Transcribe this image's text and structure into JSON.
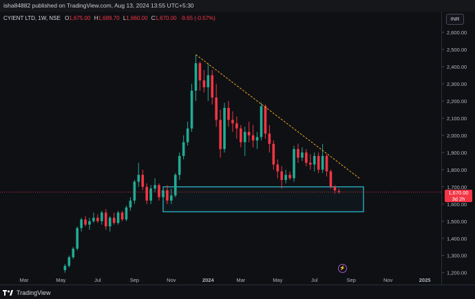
{
  "header": {
    "published_line": "isha84882 published on TradingView.com, Aug 13, 2024 13:55 UTC+5:30"
  },
  "legend": {
    "symbol": "CYIENT LTD, 1W, NSE",
    "open_key": "O",
    "open": "1,675.00",
    "high_key": "H",
    "high": "1,689.70",
    "low_key": "L",
    "low": "1,660.00",
    "close_key": "C",
    "close": "1,670.00",
    "change": "-9.65 (-0.57%)"
  },
  "currency": "INR",
  "last_price": {
    "value": "1,670.00",
    "countdown": "3d 2h"
  },
  "footer": {
    "brand": "TradingView"
  },
  "colors": {
    "up": "#22ab94",
    "down": "#f23645",
    "trendline": "#f5a623",
    "zone": "#2cc6d9",
    "price_line": "#f23645",
    "background": "#0f1014"
  },
  "icons": {
    "replay": "lightning-icon",
    "logo": "tradingview-logo-icon"
  },
  "chart_data": {
    "type": "candlestick",
    "title": "",
    "xlabel": "",
    "ylabel": "",
    "ylim": [
      1200,
      2650
    ],
    "grid": false,
    "y_ticks": [
      "1,200.00",
      "1,300.00",
      "1,400.00",
      "1,500.00",
      "1,600.00",
      "1,700.00",
      "1,800.00",
      "1,900.00",
      "2,000.00",
      "2,100.00",
      "2,200.00",
      "2,300.00",
      "2,400.00",
      "2,500.00",
      "2,600.00"
    ],
    "y_tick_values": [
      1200,
      1300,
      1400,
      1500,
      1600,
      1700,
      1800,
      1900,
      2000,
      2100,
      2200,
      2300,
      2400,
      2500,
      2600
    ],
    "x_ticks": [
      {
        "label": "Mar",
        "week": 0
      },
      {
        "label": "May",
        "week": 9
      },
      {
        "label": "Jul",
        "week": 18
      },
      {
        "label": "Sep",
        "week": 27
      },
      {
        "label": "Nov",
        "week": 36
      },
      {
        "label": "2024",
        "week": 45
      },
      {
        "label": "Mar",
        "week": 53
      },
      {
        "label": "May",
        "week": 62
      },
      {
        "label": "Jul",
        "week": 71
      },
      {
        "label": "Sep",
        "week": 80
      },
      {
        "label": "Nov",
        "week": 89
      },
      {
        "label": "2025",
        "week": 98
      }
    ],
    "candles": [
      {
        "w": 10,
        "o": 1215,
        "h": 1250,
        "l": 1200,
        "c": 1240
      },
      {
        "w": 11,
        "o": 1240,
        "h": 1300,
        "l": 1230,
        "c": 1290
      },
      {
        "w": 12,
        "o": 1290,
        "h": 1350,
        "l": 1280,
        "c": 1340
      },
      {
        "w": 13,
        "o": 1340,
        "h": 1470,
        "l": 1330,
        "c": 1460
      },
      {
        "w": 14,
        "o": 1460,
        "h": 1520,
        "l": 1440,
        "c": 1510
      },
      {
        "w": 15,
        "o": 1510,
        "h": 1530,
        "l": 1470,
        "c": 1480
      },
      {
        "w": 16,
        "o": 1480,
        "h": 1520,
        "l": 1450,
        "c": 1500
      },
      {
        "w": 17,
        "o": 1500,
        "h": 1550,
        "l": 1490,
        "c": 1520
      },
      {
        "w": 18,
        "o": 1520,
        "h": 1540,
        "l": 1490,
        "c": 1500
      },
      {
        "w": 19,
        "o": 1500,
        "h": 1560,
        "l": 1480,
        "c": 1550
      },
      {
        "w": 20,
        "o": 1550,
        "h": 1570,
        "l": 1450,
        "c": 1470
      },
      {
        "w": 21,
        "o": 1470,
        "h": 1530,
        "l": 1440,
        "c": 1520
      },
      {
        "w": 22,
        "o": 1520,
        "h": 1550,
        "l": 1480,
        "c": 1490
      },
      {
        "w": 23,
        "o": 1490,
        "h": 1560,
        "l": 1480,
        "c": 1550
      },
      {
        "w": 24,
        "o": 1550,
        "h": 1560,
        "l": 1500,
        "c": 1510
      },
      {
        "w": 25,
        "o": 1510,
        "h": 1590,
        "l": 1500,
        "c": 1580
      },
      {
        "w": 26,
        "o": 1580,
        "h": 1640,
        "l": 1560,
        "c": 1620
      },
      {
        "w": 27,
        "o": 1620,
        "h": 1740,
        "l": 1600,
        "c": 1730
      },
      {
        "w": 28,
        "o": 1730,
        "h": 1840,
        "l": 1700,
        "c": 1770
      },
      {
        "w": 29,
        "o": 1770,
        "h": 1800,
        "l": 1680,
        "c": 1700
      },
      {
        "w": 30,
        "o": 1700,
        "h": 1720,
        "l": 1600,
        "c": 1620
      },
      {
        "w": 31,
        "o": 1620,
        "h": 1710,
        "l": 1600,
        "c": 1690
      },
      {
        "w": 32,
        "o": 1690,
        "h": 1750,
        "l": 1670,
        "c": 1710
      },
      {
        "w": 33,
        "o": 1710,
        "h": 1720,
        "l": 1620,
        "c": 1640
      },
      {
        "w": 34,
        "o": 1640,
        "h": 1700,
        "l": 1620,
        "c": 1680
      },
      {
        "w": 35,
        "o": 1680,
        "h": 1710,
        "l": 1600,
        "c": 1620
      },
      {
        "w": 36,
        "o": 1620,
        "h": 1690,
        "l": 1600,
        "c": 1650
      },
      {
        "w": 37,
        "o": 1650,
        "h": 1780,
        "l": 1640,
        "c": 1770
      },
      {
        "w": 38,
        "o": 1770,
        "h": 1900,
        "l": 1740,
        "c": 1880
      },
      {
        "w": 39,
        "o": 1880,
        "h": 2000,
        "l": 1860,
        "c": 1960
      },
      {
        "w": 40,
        "o": 1960,
        "h": 2080,
        "l": 1940,
        "c": 2040
      },
      {
        "w": 41,
        "o": 2040,
        "h": 2300,
        "l": 2020,
        "c": 2260
      },
      {
        "w": 42,
        "o": 2260,
        "h": 2470,
        "l": 2200,
        "c": 2420
      },
      {
        "w": 43,
        "o": 2420,
        "h": 2430,
        "l": 2260,
        "c": 2320
      },
      {
        "w": 44,
        "o": 2320,
        "h": 2380,
        "l": 2250,
        "c": 2280
      },
      {
        "w": 45,
        "o": 2280,
        "h": 2420,
        "l": 2200,
        "c": 2350
      },
      {
        "w": 46,
        "o": 2350,
        "h": 2380,
        "l": 2180,
        "c": 2220
      },
      {
        "w": 47,
        "o": 2220,
        "h": 2300,
        "l": 2050,
        "c": 2090
      },
      {
        "w": 48,
        "o": 2090,
        "h": 2150,
        "l": 1870,
        "c": 1920
      },
      {
        "w": 49,
        "o": 1920,
        "h": 2190,
        "l": 1900,
        "c": 2160
      },
      {
        "w": 50,
        "o": 2160,
        "h": 2200,
        "l": 2050,
        "c": 2090
      },
      {
        "w": 51,
        "o": 2090,
        "h": 2140,
        "l": 2020,
        "c": 2070
      },
      {
        "w": 52,
        "o": 2070,
        "h": 2110,
        "l": 1980,
        "c": 2040
      },
      {
        "w": 53,
        "o": 2040,
        "h": 2060,
        "l": 1930,
        "c": 1960
      },
      {
        "w": 54,
        "o": 1960,
        "h": 2050,
        "l": 1880,
        "c": 2020
      },
      {
        "w": 55,
        "o": 2020,
        "h": 2080,
        "l": 1960,
        "c": 2000
      },
      {
        "w": 56,
        "o": 2000,
        "h": 2060,
        "l": 1930,
        "c": 1970
      },
      {
        "w": 57,
        "o": 1970,
        "h": 2020,
        "l": 1920,
        "c": 1990
      },
      {
        "w": 58,
        "o": 1990,
        "h": 2190,
        "l": 1970,
        "c": 2170
      },
      {
        "w": 59,
        "o": 2170,
        "h": 2180,
        "l": 1980,
        "c": 2010
      },
      {
        "w": 60,
        "o": 2010,
        "h": 2060,
        "l": 1900,
        "c": 1950
      },
      {
        "w": 61,
        "o": 1950,
        "h": 1970,
        "l": 1800,
        "c": 1830
      },
      {
        "w": 62,
        "o": 1830,
        "h": 1860,
        "l": 1750,
        "c": 1790
      },
      {
        "w": 63,
        "o": 1790,
        "h": 1820,
        "l": 1690,
        "c": 1740
      },
      {
        "w": 64,
        "o": 1740,
        "h": 1800,
        "l": 1720,
        "c": 1770
      },
      {
        "w": 65,
        "o": 1770,
        "h": 1790,
        "l": 1740,
        "c": 1750
      },
      {
        "w": 66,
        "o": 1750,
        "h": 1940,
        "l": 1730,
        "c": 1920
      },
      {
        "w": 67,
        "o": 1920,
        "h": 1950,
        "l": 1840,
        "c": 1870
      },
      {
        "w": 68,
        "o": 1870,
        "h": 1930,
        "l": 1850,
        "c": 1900
      },
      {
        "w": 69,
        "o": 1900,
        "h": 1920,
        "l": 1820,
        "c": 1840
      },
      {
        "w": 70,
        "o": 1840,
        "h": 1890,
        "l": 1800,
        "c": 1830
      },
      {
        "w": 71,
        "o": 1830,
        "h": 1900,
        "l": 1790,
        "c": 1880
      },
      {
        "w": 72,
        "o": 1880,
        "h": 1900,
        "l": 1780,
        "c": 1800
      },
      {
        "w": 73,
        "o": 1800,
        "h": 1950,
        "l": 1780,
        "c": 1880
      },
      {
        "w": 74,
        "o": 1880,
        "h": 1890,
        "l": 1760,
        "c": 1790
      },
      {
        "w": 75,
        "o": 1790,
        "h": 1800,
        "l": 1690,
        "c": 1700
      },
      {
        "w": 76,
        "o": 1700,
        "h": 1710,
        "l": 1660,
        "c": 1679.65
      },
      {
        "w": 77,
        "o": 1675,
        "h": 1689.7,
        "l": 1660,
        "c": 1670
      }
    ],
    "trendline": {
      "from": {
        "week": 42,
        "price": 2470
      },
      "to": {
        "week": 82,
        "price": 1750
      }
    },
    "zone": {
      "from_week": 34,
      "to_week": 83,
      "top": 1700,
      "bottom": 1555
    },
    "last_close": 1670
  }
}
